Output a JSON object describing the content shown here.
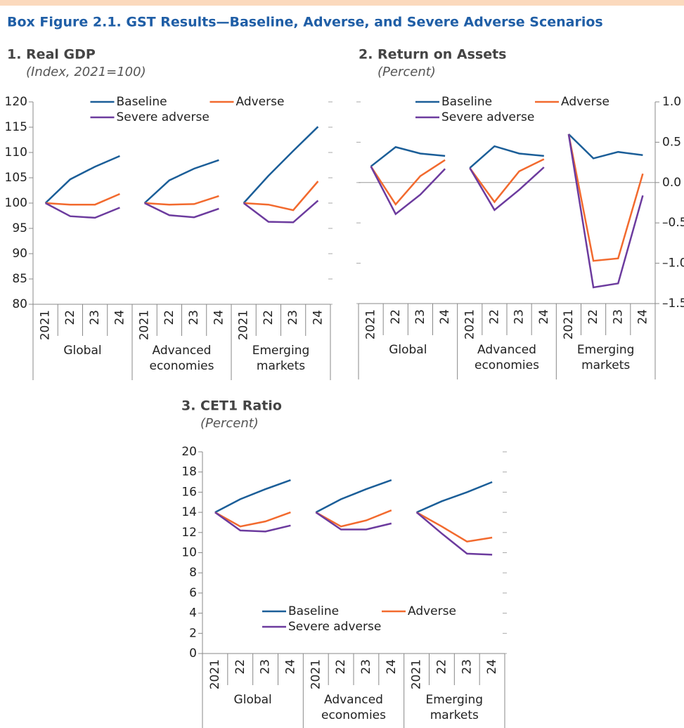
{
  "title": "Box Figure 2.1. GST Results—Baseline, Adverse, and Severe Adverse Scenarios",
  "chart_data": [
    {
      "type": "line",
      "title": "1. Real GDP",
      "subtitle": "(Index, 2021=100)",
      "groups": [
        {
          "name": "Global",
          "categories": [
            "2021",
            "22",
            "23",
            "24"
          ]
        },
        {
          "name": "Advanced economies",
          "categories": [
            "2021",
            "22",
            "23",
            "24"
          ]
        },
        {
          "name": "Emerging markets",
          "categories": [
            "2021",
            "22",
            "23",
            "24"
          ]
        }
      ],
      "series": [
        {
          "name": "Baseline",
          "color": "#1b5e98",
          "values": [
            [
              100,
              104.7,
              107.2,
              109.3
            ],
            [
              100,
              104.5,
              106.8,
              108.5
            ],
            [
              100,
              105.4,
              110.3,
              115.1
            ]
          ]
        },
        {
          "name": "Adverse",
          "color": "#f26a2e",
          "values": [
            [
              100,
              99.7,
              99.7,
              101.8
            ],
            [
              100,
              99.7,
              99.8,
              101.4
            ],
            [
              100,
              99.7,
              98.6,
              104.3
            ]
          ]
        },
        {
          "name": "Severe adverse",
          "color": "#6c3b9e",
          "values": [
            [
              100,
              97.4,
              97.1,
              99.1
            ],
            [
              100,
              97.6,
              97.2,
              98.9
            ],
            [
              100,
              96.3,
              96.2,
              100.5
            ]
          ]
        }
      ],
      "ylim": [
        80,
        120
      ],
      "yticks": [
        80,
        85,
        90,
        95,
        100,
        105,
        110,
        115,
        120
      ],
      "y_axis_side": "left",
      "legend": "upper center",
      "zero_line": false
    },
    {
      "type": "line",
      "title": "2. Return on Assets",
      "subtitle": "(Percent)",
      "groups": [
        {
          "name": "Global",
          "categories": [
            "2021",
            "22",
            "23",
            "24"
          ]
        },
        {
          "name": "Advanced economies",
          "categories": [
            "2021",
            "22",
            "23",
            "24"
          ]
        },
        {
          "name": "Emerging markets",
          "categories": [
            "2021",
            "22",
            "23",
            "24"
          ]
        }
      ],
      "series": [
        {
          "name": "Baseline",
          "color": "#1b5e98",
          "values": [
            [
              0.2,
              0.44,
              0.36,
              0.33
            ],
            [
              0.18,
              0.45,
              0.36,
              0.33
            ],
            [
              0.6,
              0.3,
              0.38,
              0.34
            ]
          ]
        },
        {
          "name": "Adverse",
          "color": "#f26a2e",
          "values": [
            [
              0.2,
              -0.27,
              0.08,
              0.28
            ],
            [
              0.18,
              -0.24,
              0.14,
              0.29
            ],
            [
              0.6,
              -0.97,
              -0.94,
              0.11
            ]
          ]
        },
        {
          "name": "Severe adverse",
          "color": "#6c3b9e",
          "values": [
            [
              0.2,
              -0.39,
              -0.15,
              0.17
            ],
            [
              0.18,
              -0.34,
              -0.09,
              0.19
            ],
            [
              0.6,
              -1.3,
              -1.25,
              -0.16
            ]
          ]
        }
      ],
      "ylim": [
        -1.5,
        1.0
      ],
      "yticks": [
        {
          "value": -1.5,
          "label": "–1.5"
        },
        {
          "value": -1.0,
          "label": "–1.0"
        },
        {
          "value": -0.5,
          "label": "–0.5"
        },
        {
          "value": 0,
          "label": "0.0"
        },
        {
          "value": 0.5,
          "label": "0.5"
        },
        {
          "value": 1.0,
          "label": "1.0"
        }
      ],
      "y_axis_side": "right",
      "legend": "upper center",
      "zero_line": true
    },
    {
      "type": "line",
      "title": "3. CET1 Ratio",
      "subtitle": "(Percent)",
      "groups": [
        {
          "name": "Global",
          "categories": [
            "2021",
            "22",
            "23",
            "24"
          ]
        },
        {
          "name": "Advanced economies",
          "categories": [
            "2021",
            "22",
            "23",
            "24"
          ]
        },
        {
          "name": "Emerging markets",
          "categories": [
            "2021",
            "22",
            "23",
            "24"
          ]
        }
      ],
      "series": [
        {
          "name": "Baseline",
          "color": "#1b5e98",
          "values": [
            [
              14,
              15.3,
              16.3,
              17.2
            ],
            [
              14,
              15.3,
              16.3,
              17.2
            ],
            [
              14,
              15.1,
              16.0,
              17.0
            ]
          ]
        },
        {
          "name": "Adverse",
          "color": "#f26a2e",
          "values": [
            [
              14,
              12.6,
              13.1,
              14.0
            ],
            [
              14,
              12.6,
              13.2,
              14.2
            ],
            [
              14,
              12.6,
              11.1,
              11.5
            ]
          ]
        },
        {
          "name": "Severe adverse",
          "color": "#6c3b9e",
          "values": [
            [
              14,
              12.2,
              12.1,
              12.7
            ],
            [
              14,
              12.3,
              12.3,
              12.9
            ],
            [
              14,
              11.9,
              9.9,
              9.8
            ]
          ]
        }
      ],
      "ylim": [
        0,
        20
      ],
      "yticks": [
        0,
        2,
        4,
        6,
        8,
        10,
        12,
        14,
        16,
        18,
        20
      ],
      "y_axis_side": "left",
      "legend": "lower center",
      "zero_line": false
    }
  ]
}
